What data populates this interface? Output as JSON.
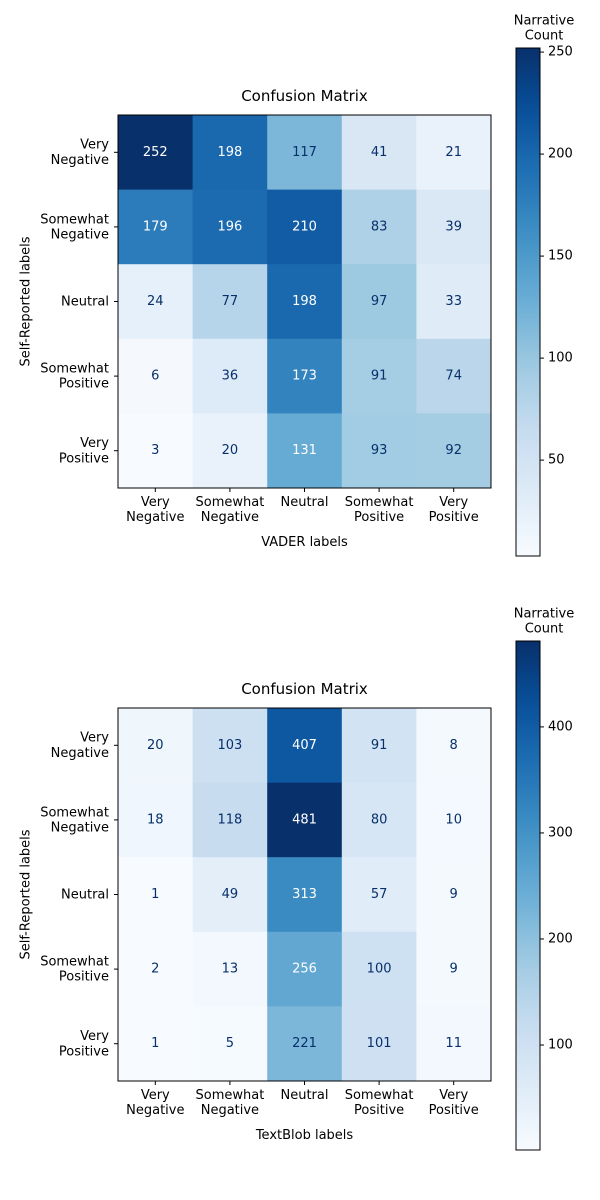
{
  "chart_data": [
    {
      "type": "heatmap",
      "title": "Confusion Matrix",
      "xlabel": "VADER labels",
      "ylabel": "Self-Reported labels",
      "x_categories": [
        [
          "Very",
          "Negative"
        ],
        [
          "Somewhat",
          "Negative"
        ],
        [
          "Neutral"
        ],
        [
          "Somewhat",
          "Positive"
        ],
        [
          "Very",
          "Positive"
        ]
      ],
      "y_categories": [
        [
          "Very",
          "Negative"
        ],
        [
          "Somewhat",
          "Negative"
        ],
        [
          "Neutral"
        ],
        [
          "Somewhat",
          "Positive"
        ],
        [
          "Very",
          "Positive"
        ]
      ],
      "values": [
        [
          252,
          198,
          117,
          41,
          21
        ],
        [
          179,
          196,
          210,
          83,
          39
        ],
        [
          24,
          77,
          198,
          97,
          33
        ],
        [
          6,
          36,
          173,
          91,
          74
        ],
        [
          3,
          20,
          131,
          93,
          92
        ]
      ],
      "colormap": "Blues",
      "colorbar": {
        "label": [
          "Narrative",
          "Count"
        ],
        "range": [
          3,
          252
        ],
        "ticks": [
          50,
          100,
          150,
          200,
          250
        ]
      }
    },
    {
      "type": "heatmap",
      "title": "Confusion Matrix",
      "xlabel": "TextBlob labels",
      "ylabel": "Self-Reported labels",
      "x_categories": [
        [
          "Very",
          "Negative"
        ],
        [
          "Somewhat",
          "Negative"
        ],
        [
          "Neutral"
        ],
        [
          "Somewhat",
          "Positive"
        ],
        [
          "Very",
          "Positive"
        ]
      ],
      "y_categories": [
        [
          "Very",
          "Negative"
        ],
        [
          "Somewhat",
          "Negative"
        ],
        [
          "Neutral"
        ],
        [
          "Somewhat",
          "Positive"
        ],
        [
          "Very",
          "Positive"
        ]
      ],
      "values": [
        [
          20,
          103,
          407,
          91,
          8
        ],
        [
          18,
          118,
          481,
          80,
          10
        ],
        [
          1,
          49,
          313,
          57,
          9
        ],
        [
          2,
          13,
          256,
          100,
          9
        ],
        [
          1,
          5,
          221,
          101,
          11
        ]
      ],
      "colormap": "Blues",
      "colorbar": {
        "label": [
          "Narrative",
          "Count"
        ],
        "range": [
          1,
          481
        ],
        "ticks": [
          100,
          200,
          300,
          400
        ]
      }
    }
  ]
}
